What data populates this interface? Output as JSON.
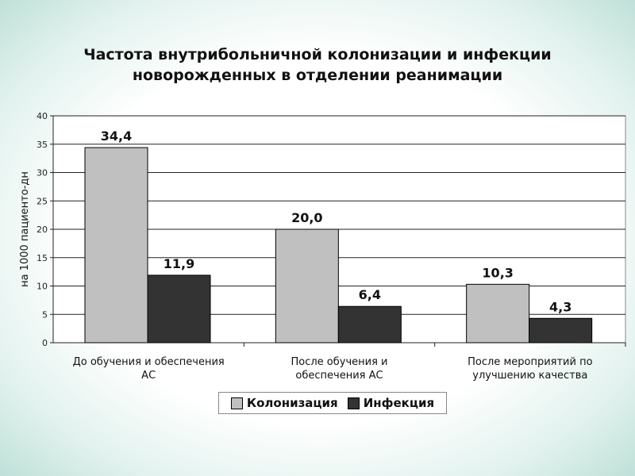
{
  "chart_data": {
    "type": "bar",
    "title": "Частота внутрибольничной колонизации и инфекции новорожденных в отделении реанимации",
    "title_lines": [
      "Частота внутрибольничной колонизации и инфекции",
      "новорожденных в отделении реанимации"
    ],
    "ylabel": "на 1000 пациенто-дн",
    "ylim": [
      0,
      40
    ],
    "yticks": [
      "0",
      "5",
      "10",
      "15",
      "20",
      "25",
      "30",
      "35",
      "40"
    ],
    "categories": [
      [
        "До обучения и обеспечения",
        "АС"
      ],
      [
        "После обучения и",
        "обеспечения АС"
      ],
      [
        "После мероприятий по",
        "улучшению качества"
      ]
    ],
    "series": [
      {
        "name": "Колонизация",
        "values": [
          34.4,
          20.0,
          10.3
        ],
        "labels": [
          "34,4",
          "20,0",
          "10,3"
        ],
        "color": "#c0c0c0"
      },
      {
        "name": "Инфекция",
        "values": [
          11.9,
          6.4,
          4.3
        ],
        "labels": [
          "11,9",
          "6,4",
          "4,3"
        ],
        "color": "#333333"
      }
    ],
    "grid": true,
    "legend_position": "bottom"
  }
}
